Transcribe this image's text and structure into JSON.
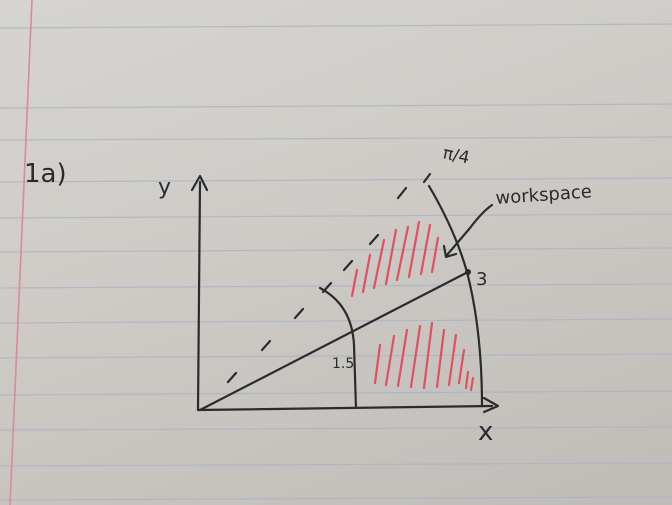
{
  "paper": {
    "rule_color": "#a9b4c4",
    "margin_color": "#d98a98",
    "ink_color": "#2b2b2e",
    "hatch_color": "#e0505e"
  },
  "labels": {
    "part": "1a)",
    "y_axis": "y",
    "x_axis": "x",
    "angle": "π/4",
    "workspace": "workspace",
    "outer_radius": "3",
    "inner_radius": "1.5"
  }
}
